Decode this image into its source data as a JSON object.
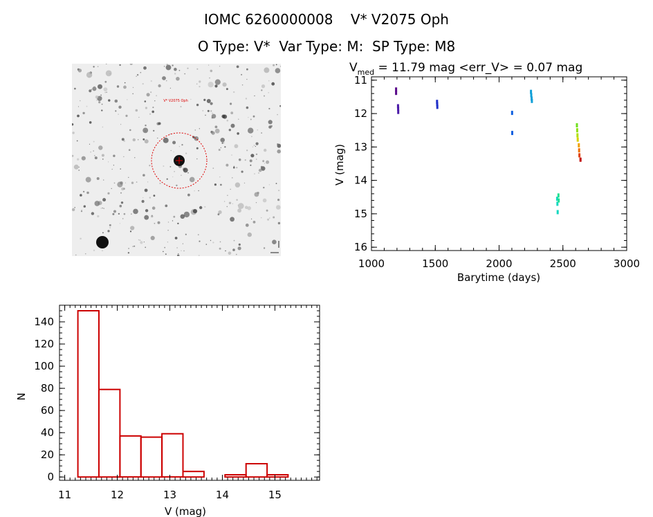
{
  "header": {
    "title": "IOMC 6260000008    V* V2075 Oph",
    "subtitle": "O Type: V*  Var Type: M:  SP Type: M8"
  },
  "finder_chart": {
    "target_label": "V* V2075 Oph"
  },
  "chart_data": [
    {
      "type": "scatter",
      "name": "light-curve",
      "title_main": "V",
      "title_sub": "med",
      "title_rest": " = 11.79 mag <err_V> = 0.07 mag",
      "xlabel": "Barytime (days)",
      "ylabel": "V (mag)",
      "xlim": [
        1000,
        3000
      ],
      "ylim": [
        16.1,
        10.9
      ],
      "xticks": [
        1000,
        1500,
        2000,
        2500,
        3000
      ],
      "yticks": [
        11,
        12,
        13,
        14,
        15,
        16
      ],
      "points": [
        {
          "x": 1193,
          "y": 11.28,
          "color": "#5a0a8a"
        },
        {
          "x": 1193,
          "y": 11.38,
          "color": "#5a0a8a"
        },
        {
          "x": 1208,
          "y": 11.78,
          "color": "#4a1aa8"
        },
        {
          "x": 1209,
          "y": 11.85,
          "color": "#4a1aa8"
        },
        {
          "x": 1210,
          "y": 11.95,
          "color": "#4a1aa8"
        },
        {
          "x": 1514,
          "y": 11.65,
          "color": "#2030c8"
        },
        {
          "x": 1515,
          "y": 11.72,
          "color": "#2030c8"
        },
        {
          "x": 1516,
          "y": 11.8,
          "color": "#2030c8"
        },
        {
          "x": 2102,
          "y": 11.98,
          "color": "#1060e0"
        },
        {
          "x": 2103,
          "y": 12.58,
          "color": "#1060e0"
        },
        {
          "x": 2250,
          "y": 11.35,
          "color": "#10a0d8"
        },
        {
          "x": 2252,
          "y": 11.45,
          "color": "#10a0d8"
        },
        {
          "x": 2255,
          "y": 11.55,
          "color": "#10a0d8"
        },
        {
          "x": 2257,
          "y": 11.62,
          "color": "#10a0d8"
        },
        {
          "x": 2455,
          "y": 14.55,
          "color": "#10d8c0"
        },
        {
          "x": 2457,
          "y": 14.7,
          "color": "#10d8c0"
        },
        {
          "x": 2459,
          "y": 14.95,
          "color": "#10d8c0"
        },
        {
          "x": 2465,
          "y": 14.45,
          "color": "#20e090"
        },
        {
          "x": 2467,
          "y": 14.6,
          "color": "#20e090"
        },
        {
          "x": 2610,
          "y": 12.35,
          "color": "#70e020"
        },
        {
          "x": 2612,
          "y": 12.5,
          "color": "#90e010"
        },
        {
          "x": 2614,
          "y": 12.65,
          "color": "#b0e000"
        },
        {
          "x": 2616,
          "y": 12.78,
          "color": "#d8d000"
        },
        {
          "x": 2625,
          "y": 12.95,
          "color": "#f0a000"
        },
        {
          "x": 2627,
          "y": 13.1,
          "color": "#f07000"
        },
        {
          "x": 2629,
          "y": 13.25,
          "color": "#e04000"
        },
        {
          "x": 2638,
          "y": 13.38,
          "color": "#c00000"
        }
      ]
    },
    {
      "type": "bar",
      "name": "magnitude-histogram",
      "xlabel": "V (mag)",
      "ylabel": "N",
      "xlim": [
        10.9,
        15.85
      ],
      "ylim": [
        -3,
        155
      ],
      "xticks": [
        11,
        12,
        13,
        14,
        15
      ],
      "yticks": [
        0,
        20,
        40,
        60,
        80,
        100,
        120,
        140
      ],
      "bin_edges": [
        11.25,
        11.65,
        12.05,
        12.45,
        12.85,
        13.25,
        13.65,
        14.05,
        14.45,
        14.85,
        15.25
      ],
      "values": [
        150,
        79,
        37,
        36,
        39,
        5,
        0,
        2,
        12,
        2
      ],
      "bar_color": "#cc0000"
    }
  ]
}
